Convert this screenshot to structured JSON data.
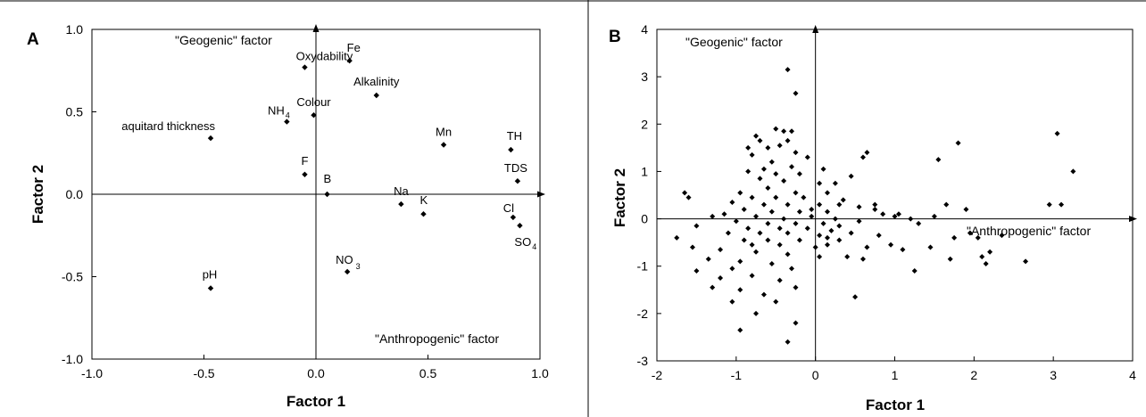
{
  "chart_data": [
    {
      "type": "scatter",
      "panel_label": "A",
      "xlabel": "Factor 1",
      "ylabel": "Factor 2",
      "xlim": [
        -1.0,
        1.0
      ],
      "ylim": [
        -1.0,
        1.0
      ],
      "x_ticks": [
        "-1.0",
        "-0.5",
        "0.0",
        "0.5",
        "1.0"
      ],
      "y_ticks": [
        "-1.0",
        "-0.5",
        "0.0",
        "0.5",
        "1.0"
      ],
      "annotations": [
        "\"Geogenic\" factor",
        "\"Anthropogenic\" factor"
      ],
      "grid": false,
      "points": [
        {
          "label": "Fe",
          "x": 0.15,
          "y": 0.81
        },
        {
          "label": "Oxydability",
          "x": -0.05,
          "y": 0.77
        },
        {
          "label": "Alkalinity",
          "x": 0.27,
          "y": 0.6
        },
        {
          "label": "Colour",
          "x": -0.01,
          "y": 0.48
        },
        {
          "label": "NH",
          "sub": "4",
          "x": -0.13,
          "y": 0.44
        },
        {
          "label": "aquitard thickness",
          "x": -0.47,
          "y": 0.34
        },
        {
          "label": "Mn",
          "x": 0.57,
          "y": 0.3
        },
        {
          "label": "TH",
          "x": 0.87,
          "y": 0.27
        },
        {
          "label": "TDS",
          "x": 0.9,
          "y": 0.08
        },
        {
          "label": "F",
          "x": -0.05,
          "y": 0.12
        },
        {
          "label": "B",
          "x": 0.05,
          "y": 0.0
        },
        {
          "label": "Na",
          "x": 0.38,
          "y": -0.06
        },
        {
          "label": "K",
          "x": 0.48,
          "y": -0.12
        },
        {
          "label": "Cl",
          "x": 0.88,
          "y": -0.14
        },
        {
          "label": "SO",
          "sub": "4",
          "x": 0.91,
          "y": -0.19
        },
        {
          "label": "NO",
          "sub": "3",
          "x": 0.14,
          "y": -0.47
        },
        {
          "label": "pH",
          "x": -0.47,
          "y": -0.57
        }
      ]
    },
    {
      "type": "scatter",
      "panel_label": "B",
      "xlabel": "Factor 1",
      "ylabel": "Factor 2",
      "xlim": [
        -2,
        4
      ],
      "ylim": [
        -3,
        4
      ],
      "x_ticks": [
        "-2",
        "-1",
        "0",
        "1",
        "2",
        "3",
        "4"
      ],
      "y_ticks": [
        "-3",
        "-2",
        "-1",
        "0",
        "1",
        "2",
        "3",
        "4"
      ],
      "annotations": [
        "\"Geogenic\" factor",
        "\"Anthropogenic\" factor"
      ],
      "grid": false,
      "points": [
        [
          -0.35,
          3.15
        ],
        [
          -0.25,
          2.65
        ],
        [
          -0.5,
          1.9
        ],
        [
          -0.4,
          1.85
        ],
        [
          -0.3,
          1.85
        ],
        [
          -0.35,
          1.65
        ],
        [
          -0.75,
          1.75
        ],
        [
          -0.7,
          1.65
        ],
        [
          -0.85,
          1.5
        ],
        [
          -0.6,
          1.5
        ],
        [
          -0.45,
          1.55
        ],
        [
          -0.25,
          1.4
        ],
        [
          -0.8,
          1.35
        ],
        [
          -0.55,
          1.2
        ],
        [
          -0.1,
          1.3
        ],
        [
          -0.65,
          1.05
        ],
        [
          -0.3,
          1.1
        ],
        [
          -0.85,
          1.0
        ],
        [
          -0.5,
          0.95
        ],
        [
          -0.2,
          0.95
        ],
        [
          0.1,
          1.05
        ],
        [
          -0.7,
          0.85
        ],
        [
          -0.4,
          0.8
        ],
        [
          0.05,
          0.75
        ],
        [
          -0.6,
          0.65
        ],
        [
          -0.95,
          0.55
        ],
        [
          -0.25,
          0.55
        ],
        [
          0.15,
          0.55
        ],
        [
          -0.8,
          0.45
        ],
        [
          -0.5,
          0.45
        ],
        [
          -0.15,
          0.45
        ],
        [
          0.35,
          0.4
        ],
        [
          -1.05,
          0.35
        ],
        [
          -0.65,
          0.3
        ],
        [
          -0.35,
          0.3
        ],
        [
          0.05,
          0.3
        ],
        [
          0.3,
          0.3
        ],
        [
          -0.9,
          0.2
        ],
        [
          -0.55,
          0.15
        ],
        [
          -0.2,
          0.15
        ],
        [
          0.15,
          0.15
        ],
        [
          -1.15,
          0.1
        ],
        [
          -0.75,
          0.05
        ],
        [
          -0.4,
          0.0
        ],
        [
          -0.05,
          0.05
        ],
        [
          0.25,
          0.0
        ],
        [
          -1.0,
          -0.05
        ],
        [
          -0.6,
          -0.1
        ],
        [
          -0.25,
          -0.1
        ],
        [
          0.1,
          -0.1
        ],
        [
          0.3,
          -0.15
        ],
        [
          -0.85,
          -0.2
        ],
        [
          -0.45,
          -0.2
        ],
        [
          -0.1,
          -0.2
        ],
        [
          0.2,
          -0.25
        ],
        [
          -1.1,
          -0.3
        ],
        [
          -0.7,
          -0.3
        ],
        [
          -0.35,
          -0.3
        ],
        [
          0.05,
          -0.35
        ],
        [
          -0.9,
          -0.45
        ],
        [
          -0.6,
          -0.45
        ],
        [
          -0.2,
          -0.45
        ],
        [
          0.15,
          -0.4
        ],
        [
          -0.8,
          -0.55
        ],
        [
          -0.45,
          -0.55
        ],
        [
          -0.75,
          -0.7
        ],
        [
          -0.35,
          -0.75
        ],
        [
          0.05,
          -0.8
        ],
        [
          -0.95,
          -0.9
        ],
        [
          -0.55,
          -0.95
        ],
        [
          -1.05,
          -1.05
        ],
        [
          -0.3,
          -1.05
        ],
        [
          -0.8,
          -1.2
        ],
        [
          -1.2,
          -1.25
        ],
        [
          -0.45,
          -1.3
        ],
        [
          -0.95,
          -1.5
        ],
        [
          -0.25,
          -1.45
        ],
        [
          -0.65,
          -1.6
        ],
        [
          -1.05,
          -1.75
        ],
        [
          -0.5,
          -1.75
        ],
        [
          -0.75,
          -2.0
        ],
        [
          -0.25,
          -2.2
        ],
        [
          -0.95,
          -2.35
        ],
        [
          -0.35,
          -2.6
        ],
        [
          -1.75,
          -0.4
        ],
        [
          -1.5,
          -0.15
        ],
        [
          -1.6,
          0.45
        ],
        [
          -1.3,
          0.05
        ],
        [
          -1.5,
          -1.1
        ],
        [
          -1.3,
          -1.45
        ],
        [
          -1.2,
          -0.65
        ],
        [
          -1.55,
          -0.6
        ],
        [
          -1.65,
          0.55
        ],
        [
          -1.35,
          -0.85
        ],
        [
          0.55,
          0.25
        ],
        [
          0.65,
          1.4
        ],
        [
          0.6,
          1.3
        ],
        [
          0.75,
          0.2
        ],
        [
          0.45,
          0.9
        ],
        [
          0.85,
          0.1
        ],
        [
          0.55,
          -0.05
        ],
        [
          0.8,
          -0.35
        ],
        [
          1.05,
          0.1
        ],
        [
          0.45,
          -0.3
        ],
        [
          0.65,
          -0.6
        ],
        [
          0.4,
          -0.8
        ],
        [
          0.95,
          -0.55
        ],
        [
          0.5,
          -1.65
        ],
        [
          0.6,
          -0.85
        ],
        [
          1.2,
          0.0
        ],
        [
          1.3,
          -0.1
        ],
        [
          1.1,
          -0.65
        ],
        [
          1.5,
          0.05
        ],
        [
          1.55,
          1.25
        ],
        [
          1.65,
          0.3
        ],
        [
          1.8,
          1.6
        ],
        [
          1.75,
          -0.4
        ],
        [
          1.9,
          0.2
        ],
        [
          1.95,
          -0.3
        ],
        [
          2.05,
          -0.4
        ],
        [
          2.1,
          -0.8
        ],
        [
          2.2,
          -0.7
        ],
        [
          1.7,
          -0.85
        ],
        [
          1.45,
          -0.6
        ],
        [
          2.35,
          -0.35
        ],
        [
          2.65,
          -0.9
        ],
        [
          2.95,
          0.3
        ],
        [
          3.05,
          1.8
        ],
        [
          3.1,
          0.3
        ],
        [
          3.25,
          1.0
        ],
        [
          1.25,
          -1.1
        ],
        [
          0.3,
          -0.45
        ],
        [
          0.15,
          -0.55
        ],
        [
          0.0,
          -0.6
        ],
        [
          0.75,
          0.3
        ],
        [
          1.0,
          0.05
        ],
        [
          2.15,
          -0.95
        ],
        [
          0.25,
          0.75
        ],
        [
          -0.05,
          0.2
        ]
      ]
    }
  ]
}
